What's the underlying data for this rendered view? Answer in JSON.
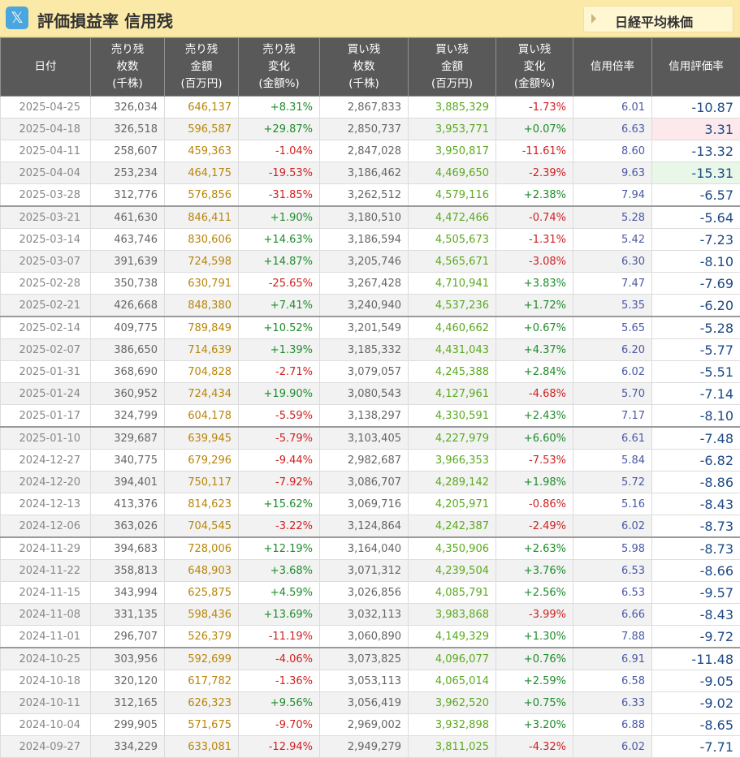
{
  "title": "評価損益率 信用残",
  "x_icon": "𝕏",
  "nikkei_label": "日経平均株価",
  "columns": [
    {
      "l1": "日付",
      "l2": "",
      "l3": ""
    },
    {
      "l1": "売り残",
      "l2": "枚数",
      "l3": "(千株)"
    },
    {
      "l1": "売り残",
      "l2": "金額",
      "l3": "(百万円)"
    },
    {
      "l1": "売り残",
      "l2": "変化",
      "l3": "(金額%)"
    },
    {
      "l1": "買い残",
      "l2": "枚数",
      "l3": "(千株)"
    },
    {
      "l1": "買い残",
      "l2": "金額",
      "l3": "(百万円)"
    },
    {
      "l1": "買い残",
      "l2": "変化",
      "l3": "(金額%)"
    },
    {
      "l1": "信用倍率",
      "l2": "",
      "l3": ""
    },
    {
      "l1": "信用評価率",
      "l2": "",
      "l3": ""
    }
  ],
  "rows": [
    [
      "2025-04-25",
      "326,034",
      "646,137",
      "+8.31%",
      "2,867,833",
      "3,885,329",
      "-1.73%",
      "6.01",
      "-10.87"
    ],
    [
      "2025-04-18",
      "326,518",
      "596,587",
      "+29.87%",
      "2,850,737",
      "3,953,771",
      "+0.07%",
      "6.63",
      "3.31"
    ],
    [
      "2025-04-11",
      "258,607",
      "459,363",
      "-1.04%",
      "2,847,028",
      "3,950,817",
      "-11.61%",
      "8.60",
      "-13.32"
    ],
    [
      "2025-04-04",
      "253,234",
      "464,175",
      "-19.53%",
      "3,186,462",
      "4,469,650",
      "-2.39%",
      "9.63",
      "-15.31"
    ],
    [
      "2025-03-28",
      "312,776",
      "576,856",
      "-31.85%",
      "3,262,512",
      "4,579,116",
      "+2.38%",
      "7.94",
      "-6.57"
    ],
    [
      "2025-03-21",
      "461,630",
      "846,411",
      "+1.90%",
      "3,180,510",
      "4,472,466",
      "-0.74%",
      "5.28",
      "-5.64"
    ],
    [
      "2025-03-14",
      "463,746",
      "830,606",
      "+14.63%",
      "3,186,594",
      "4,505,673",
      "-1.31%",
      "5.42",
      "-7.23"
    ],
    [
      "2025-03-07",
      "391,639",
      "724,598",
      "+14.87%",
      "3,205,746",
      "4,565,671",
      "-3.08%",
      "6.30",
      "-8.10"
    ],
    [
      "2025-02-28",
      "350,738",
      "630,791",
      "-25.65%",
      "3,267,428",
      "4,710,941",
      "+3.83%",
      "7.47",
      "-7.69"
    ],
    [
      "2025-02-21",
      "426,668",
      "848,380",
      "+7.41%",
      "3,240,940",
      "4,537,236",
      "+1.72%",
      "5.35",
      "-6.20"
    ],
    [
      "2025-02-14",
      "409,775",
      "789,849",
      "+10.52%",
      "3,201,549",
      "4,460,662",
      "+0.67%",
      "5.65",
      "-5.28"
    ],
    [
      "2025-02-07",
      "386,650",
      "714,639",
      "+1.39%",
      "3,185,332",
      "4,431,043",
      "+4.37%",
      "6.20",
      "-5.77"
    ],
    [
      "2025-01-31",
      "368,690",
      "704,828",
      "-2.71%",
      "3,079,057",
      "4,245,388",
      "+2.84%",
      "6.02",
      "-5.51"
    ],
    [
      "2025-01-24",
      "360,952",
      "724,434",
      "+19.90%",
      "3,080,543",
      "4,127,961",
      "-4.68%",
      "5.70",
      "-7.14"
    ],
    [
      "2025-01-17",
      "324,799",
      "604,178",
      "-5.59%",
      "3,138,297",
      "4,330,591",
      "+2.43%",
      "7.17",
      "-8.10"
    ],
    [
      "2025-01-10",
      "329,687",
      "639,945",
      "-5.79%",
      "3,103,405",
      "4,227,979",
      "+6.60%",
      "6.61",
      "-7.48"
    ],
    [
      "2024-12-27",
      "340,775",
      "679,296",
      "-9.44%",
      "2,982,687",
      "3,966,353",
      "-7.53%",
      "5.84",
      "-6.82"
    ],
    [
      "2024-12-20",
      "394,401",
      "750,117",
      "-7.92%",
      "3,086,707",
      "4,289,142",
      "+1.98%",
      "5.72",
      "-8.86"
    ],
    [
      "2024-12-13",
      "413,376",
      "814,623",
      "+15.62%",
      "3,069,716",
      "4,205,971",
      "-0.86%",
      "5.16",
      "-8.43"
    ],
    [
      "2024-12-06",
      "363,026",
      "704,545",
      "-3.22%",
      "3,124,864",
      "4,242,387",
      "-2.49%",
      "6.02",
      "-8.73"
    ],
    [
      "2024-11-29",
      "394,683",
      "728,006",
      "+12.19%",
      "3,164,040",
      "4,350,906",
      "+2.63%",
      "5.98",
      "-8.73"
    ],
    [
      "2024-11-22",
      "358,813",
      "648,903",
      "+3.68%",
      "3,071,312",
      "4,239,504",
      "+3.76%",
      "6.53",
      "-8.66"
    ],
    [
      "2024-11-15",
      "343,994",
      "625,875",
      "+4.59%",
      "3,026,856",
      "4,085,791",
      "+2.56%",
      "6.53",
      "-9.57"
    ],
    [
      "2024-11-08",
      "331,135",
      "598,436",
      "+13.69%",
      "3,032,113",
      "3,983,868",
      "-3.99%",
      "6.66",
      "-8.43"
    ],
    [
      "2024-11-01",
      "296,707",
      "526,379",
      "-11.19%",
      "3,060,890",
      "4,149,329",
      "+1.30%",
      "7.88",
      "-9.72"
    ],
    [
      "2024-10-25",
      "303,956",
      "592,699",
      "-4.06%",
      "3,073,825",
      "4,096,077",
      "+0.76%",
      "6.91",
      "-11.48"
    ],
    [
      "2024-10-18",
      "320,120",
      "617,782",
      "-1.36%",
      "3,053,113",
      "4,065,014",
      "+2.59%",
      "6.58",
      "-9.05"
    ],
    [
      "2024-10-11",
      "312,165",
      "626,323",
      "+9.56%",
      "3,056,419",
      "3,962,520",
      "+0.75%",
      "6.33",
      "-9.02"
    ],
    [
      "2024-10-04",
      "299,905",
      "571,675",
      "-9.70%",
      "2,969,002",
      "3,932,898",
      "+3.20%",
      "6.88",
      "-8.65"
    ],
    [
      "2024-09-27",
      "334,229",
      "633,081",
      "-12.94%",
      "2,949,279",
      "3,811,025",
      "-4.32%",
      "6.02",
      "-7.71"
    ]
  ],
  "colors": {
    "header_bg": "#595959",
    "title_bg": "#fbe9a8",
    "positive": "#1e8c2a",
    "negative": "#d02020",
    "ratio": "#4a5aa6",
    "hyoka": "#1e4a86",
    "highlight_pink": "#fde8ec",
    "highlight_green": "#e8f7e8"
  },
  "icons": {
    "x": "x-logo-icon",
    "nikkei": "triangle-right-icon"
  }
}
